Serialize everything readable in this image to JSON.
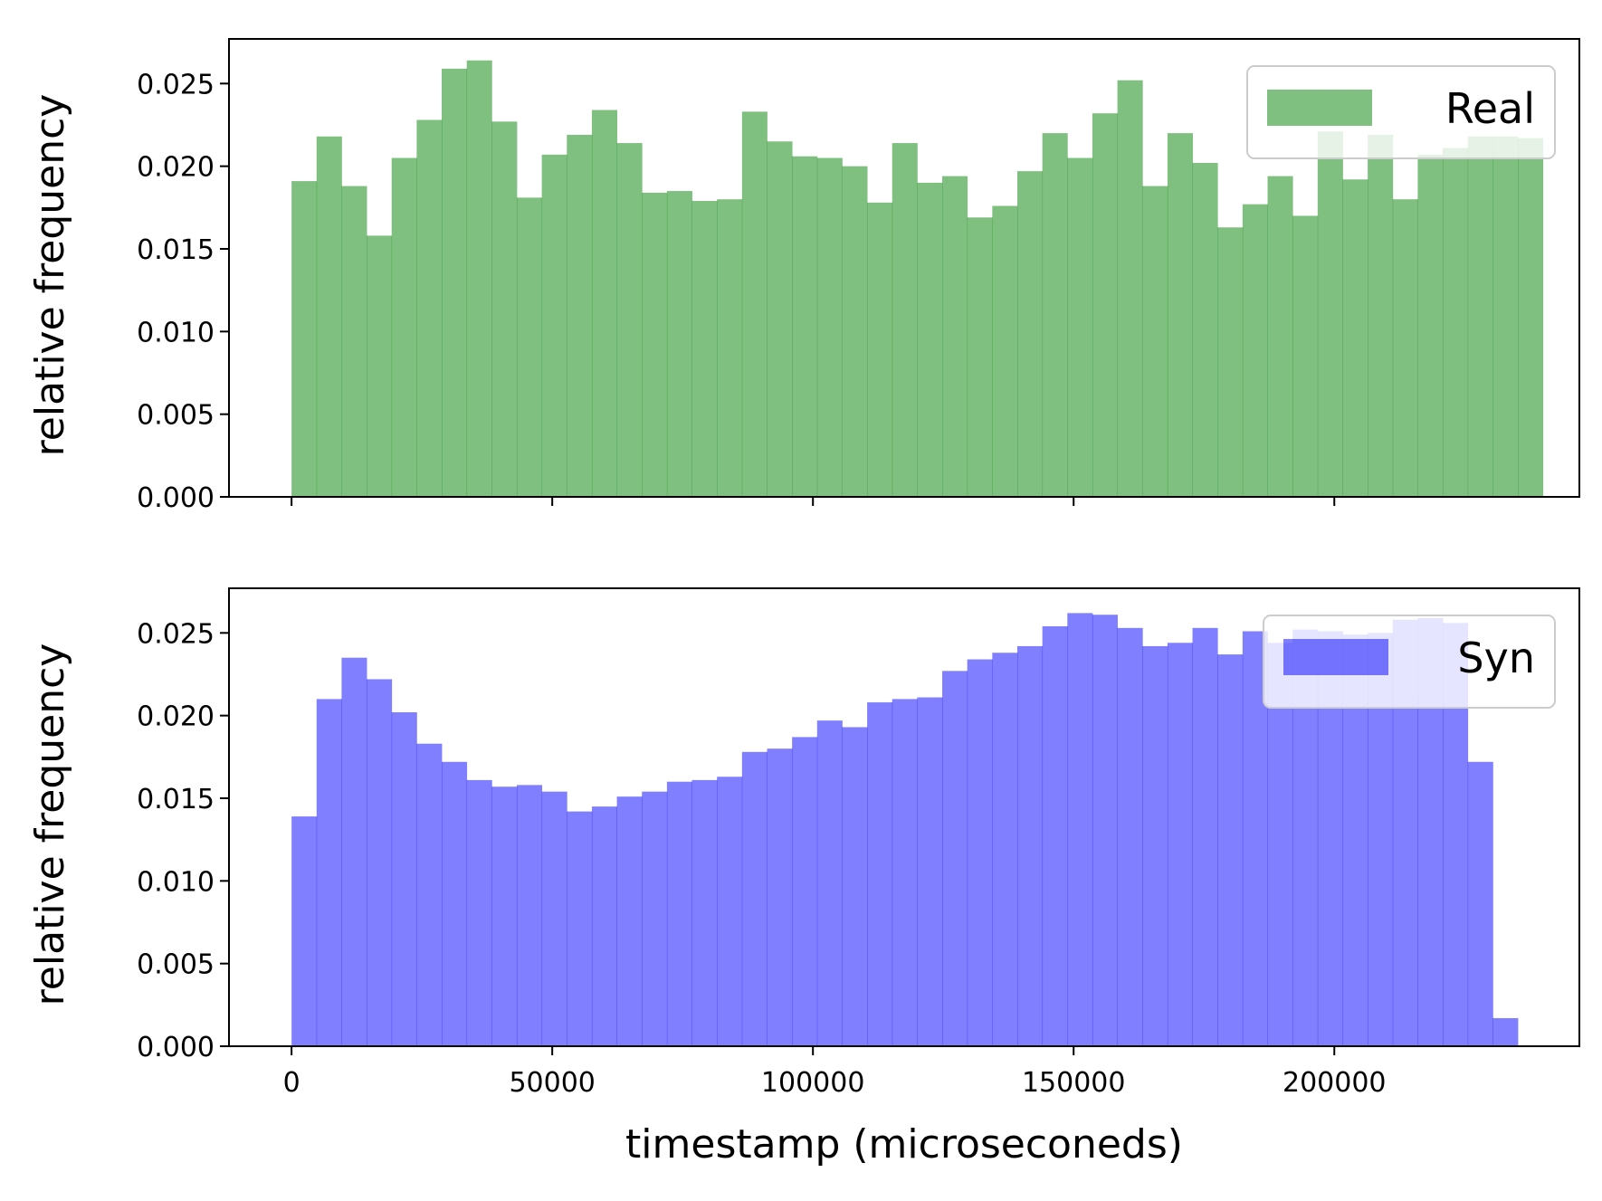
{
  "chart_data": [
    {
      "type": "bar",
      "name": "Real",
      "ylabel": "relative frequency",
      "xlabel": "",
      "ylim": [
        0,
        0.0277
      ],
      "xlim": [
        -12000,
        247000
      ],
      "yticks": [
        "0.000",
        "0.005",
        "0.010",
        "0.015",
        "0.020",
        "0.025"
      ],
      "ytick_values": [
        0,
        0.005,
        0.01,
        0.015,
        0.02,
        0.025
      ],
      "xtick_values": [
        0,
        50000,
        100000,
        150000,
        200000
      ],
      "xticklabels_visible": false,
      "bin_width": 4800,
      "bin_start": 0,
      "color": "#008000",
      "opacity": 0.5,
      "legend": {
        "label": "Real",
        "position": "top-right"
      },
      "values": [
        0.0191,
        0.0218,
        0.0188,
        0.0158,
        0.0205,
        0.0228,
        0.0259,
        0.0264,
        0.0227,
        0.0181,
        0.0207,
        0.0219,
        0.0234,
        0.0214,
        0.0184,
        0.0185,
        0.0179,
        0.018,
        0.0233,
        0.0215,
        0.0206,
        0.0205,
        0.02,
        0.0178,
        0.0214,
        0.019,
        0.0194,
        0.0169,
        0.0176,
        0.0197,
        0.022,
        0.0205,
        0.0232,
        0.0252,
        0.0188,
        0.022,
        0.0202,
        0.0163,
        0.0177,
        0.0194,
        0.017,
        0.0221,
        0.0192,
        0.0219,
        0.018,
        0.0207,
        0.0211,
        0.0218,
        0.0218,
        0.0217
      ]
    },
    {
      "type": "bar",
      "name": "Syn",
      "ylabel": "relative frequency",
      "xlabel": "timestamp (microseconeds)",
      "ylim": [
        0,
        0.0277
      ],
      "xlim": [
        -12000,
        247000
      ],
      "yticks": [
        "0.000",
        "0.005",
        "0.010",
        "0.015",
        "0.020",
        "0.025"
      ],
      "ytick_values": [
        0,
        0.005,
        0.01,
        0.015,
        0.02,
        0.025
      ],
      "xtick_values": [
        0,
        50000,
        100000,
        150000,
        200000
      ],
      "xticks": [
        "0",
        "50000",
        "100000",
        "150000",
        "200000"
      ],
      "xticklabels_visible": true,
      "bin_width": 4800,
      "bin_start": 0,
      "color": "#0000ff",
      "opacity": 0.5,
      "legend": {
        "label": "Syn",
        "position": "top-right"
      },
      "values": [
        0.0139,
        0.021,
        0.0235,
        0.0222,
        0.0202,
        0.0183,
        0.0172,
        0.0161,
        0.0157,
        0.0158,
        0.0154,
        0.0142,
        0.0145,
        0.0151,
        0.0154,
        0.016,
        0.0161,
        0.0163,
        0.0178,
        0.018,
        0.0187,
        0.0197,
        0.0193,
        0.0208,
        0.021,
        0.0211,
        0.0227,
        0.0234,
        0.0238,
        0.0242,
        0.0254,
        0.0262,
        0.0261,
        0.0253,
        0.0242,
        0.0244,
        0.0253,
        0.0237,
        0.0251,
        0.0244,
        0.0252,
        0.0251,
        0.0249,
        0.025,
        0.0258,
        0.0259,
        0.0256,
        0.0172,
        0.0017
      ]
    }
  ]
}
